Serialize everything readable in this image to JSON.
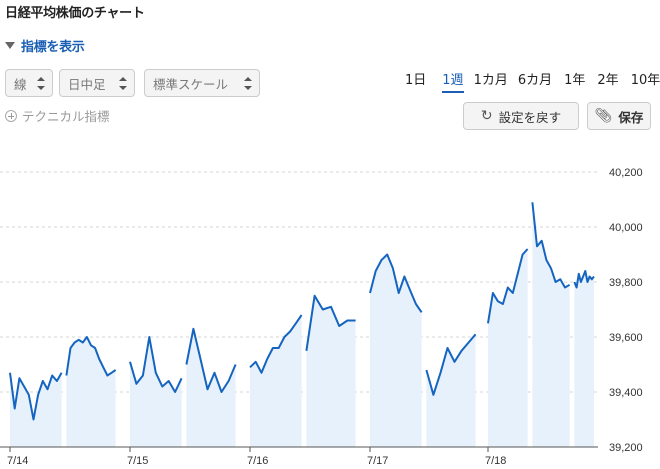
{
  "page": {
    "title": "日経平均株価のチャート",
    "indicator_toggle": "指標を表示",
    "select_type": "線",
    "select_interval": "日中足",
    "select_scale": "標準スケール",
    "periods": [
      {
        "label": "1日",
        "active": false
      },
      {
        "label": "1週",
        "active": true
      },
      {
        "label": "1カ月",
        "active": false
      },
      {
        "label": "6カ月",
        "active": false
      },
      {
        "label": "1年",
        "active": false
      },
      {
        "label": "2年",
        "active": false
      },
      {
        "label": "10年",
        "active": false
      }
    ],
    "technical_label": "テクニカル指標",
    "reset_label": "設定を戻す",
    "save_label": "保存",
    "reset_icon": "refresh-icon",
    "save_icon": "paperclip-icon",
    "line_color": "#1565c0",
    "fill_color": "#e7f1fb"
  },
  "chart_data": {
    "type": "area",
    "ylim": [
      39200,
      40250
    ],
    "yticks": [
      {
        "value": 40200,
        "label": "40,200"
      },
      {
        "value": 40000,
        "label": "40,000"
      },
      {
        "value": 39800,
        "label": "39,800"
      },
      {
        "value": 39600,
        "label": "39,600"
      },
      {
        "value": 39400,
        "label": "39,400"
      },
      {
        "value": 39200,
        "label": "39,200"
      }
    ],
    "grid": true,
    "days": [
      {
        "label": "7/14",
        "sessions": [
          [
            39470,
            39340,
            39450,
            39420,
            39390,
            39300,
            39390,
            39440,
            39410,
            39460,
            39440,
            39470
          ],
          [
            39460,
            39560,
            39580,
            39590,
            39580,
            39600,
            39570,
            39560,
            39520,
            39490,
            39460,
            39470,
            39480
          ]
        ]
      },
      {
        "label": "7/15",
        "sessions": [
          [
            39510,
            39430,
            39460,
            39600,
            39470,
            39420,
            39440,
            39400,
            39450
          ],
          [
            39500,
            39630,
            39520,
            39410,
            39470,
            39400,
            39440,
            39500
          ]
        ]
      },
      {
        "label": "7/16",
        "sessions": [
          [
            39490,
            39510,
            39470,
            39520,
            39560,
            39560,
            39600,
            39620,
            39650,
            39680
          ],
          [
            39550,
            39750,
            39700,
            39710,
            39640,
            39660,
            39660
          ]
        ]
      },
      {
        "label": "7/17",
        "sessions": [
          [
            39760,
            39840,
            39880,
            39900,
            39850,
            39760,
            39820,
            39770,
            39720,
            39690
          ],
          [
            39480,
            39390,
            39470,
            39560,
            39510,
            39550,
            39580,
            39610
          ]
        ]
      },
      {
        "label": "7/18",
        "sessions": [
          [
            39650,
            39760,
            39730,
            39720,
            39780,
            39760,
            39830,
            39900,
            39920
          ],
          [
            40090,
            39930,
            39950,
            39880,
            39850,
            39800,
            39810,
            39780,
            39790
          ],
          [
            39800,
            39780,
            39830,
            39800,
            39820,
            39840,
            39800,
            39820,
            39810,
            39820
          ]
        ]
      }
    ]
  }
}
